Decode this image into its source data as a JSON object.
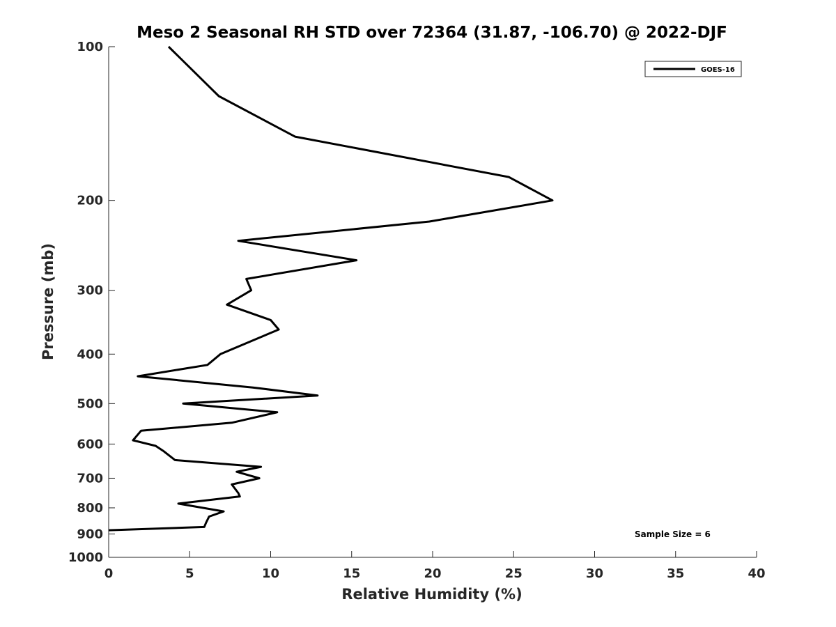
{
  "chart_data": {
    "type": "line",
    "title": "Meso 2 Seasonal RH STD over 72364 (31.87, -106.70) @ 2022-DJF",
    "xlabel": "Relative Humidity (%)",
    "ylabel": "Pressure (mb)",
    "xlim": [
      0,
      40
    ],
    "ylim": [
      100,
      1000
    ],
    "yscale": "log",
    "yreversed": true,
    "grid": false,
    "legend_position": "top-right",
    "xticks": [
      "0",
      "5",
      "10",
      "15",
      "20",
      "25",
      "30",
      "35",
      "40"
    ],
    "yticks": [
      "100",
      "200",
      "300",
      "400",
      "500",
      "600",
      "700",
      "800",
      "900",
      "1000"
    ],
    "annotation": "Sample Size = 6",
    "series": [
      {
        "name": "GOES-16",
        "color": "#000000",
        "x": [
          3.7,
          6.8,
          11.5,
          24.7,
          27.4,
          19.8,
          8.0,
          15.3,
          8.5,
          8.8,
          7.3,
          10.0,
          10.5,
          6.9,
          6.1,
          1.8,
          8.9,
          12.9,
          4.6,
          10.4,
          7.6,
          2.0,
          1.5,
          2.9,
          3.4,
          4.1,
          9.4,
          7.9,
          9.3,
          7.6,
          8.0,
          8.1,
          4.3,
          7.1,
          6.2,
          6.0,
          5.9,
          0.0
        ],
        "y": [
          100,
          125,
          150,
          180,
          200,
          220,
          240,
          262,
          285,
          300,
          320,
          343,
          358,
          400,
          420,
          442,
          465,
          482,
          500,
          520,
          545,
          565,
          590,
          605,
          620,
          645,
          665,
          680,
          700,
          720,
          748,
          760,
          785,
          813,
          832,
          857,
          872,
          885
        ]
      }
    ]
  }
}
